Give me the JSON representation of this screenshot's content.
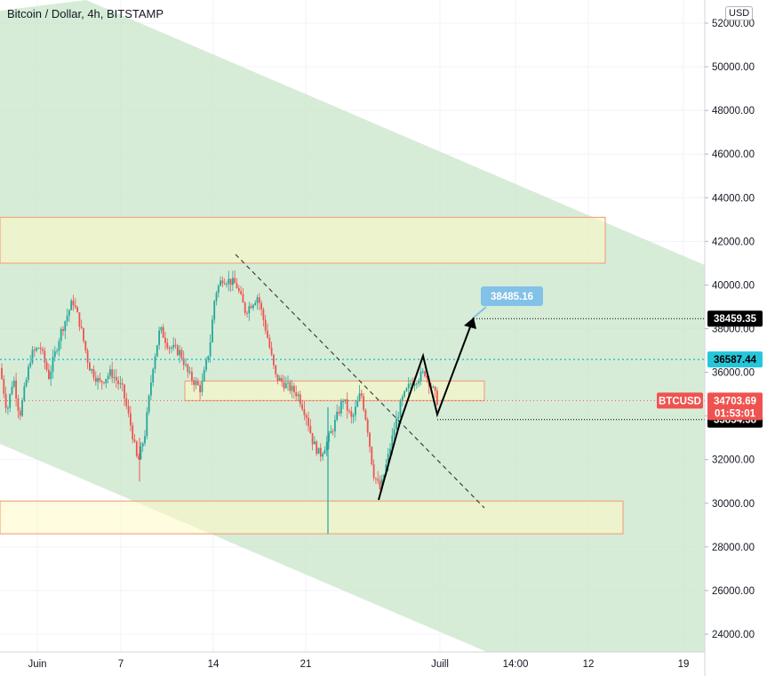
{
  "header": {
    "title": "Bitcoin / Dollar, 4h, BITSTAMP",
    "currency": "USD"
  },
  "chart_data": {
    "type": "candlestick",
    "symbol": "BTCUSD",
    "ylim": [
      23000,
      52500
    ],
    "y_ticks": [
      24000,
      26000,
      28000,
      30000,
      32000,
      34000,
      36000,
      38000,
      40000,
      42000,
      44000,
      46000,
      48000,
      50000,
      52000
    ],
    "y_tick_labels": [
      "24000.00",
      "26000.00",
      "28000.00",
      "30000.00",
      "32000.00",
      "34000.00",
      "36000.00",
      "38000.00",
      "40000.00",
      "42000.00",
      "44000.00",
      "46000.00",
      "48000.00",
      "50000.00",
      "52000.00"
    ],
    "x_tick_labels": [
      "Juin",
      "7",
      "14",
      "21",
      "Juill",
      "14:00",
      "12",
      "19"
    ],
    "price_tags": {
      "last": {
        "label": "BTCUSD",
        "value": "34703.69",
        "countdown": "01:53:01",
        "color": "#ef5350"
      },
      "level_teal": {
        "value": "36587.44",
        "color": "#26c6da"
      },
      "target": {
        "value": "38459.35",
        "color": "#000000"
      },
      "low_line": {
        "value": "33834.38",
        "color": "#000000"
      },
      "projection_callout": {
        "value": "38485.16",
        "color": "#82c1e8"
      }
    },
    "zones": [
      {
        "name": "resistance",
        "low": 41000,
        "high": 43100
      },
      {
        "name": "middle",
        "low": 34700,
        "high": 35600
      },
      {
        "name": "support",
        "low": 28600,
        "high": 30100
      }
    ],
    "colors": {
      "up": "#26a69a",
      "down": "#ef5350",
      "channel": "#c8e6c9",
      "zone_fill": "#fff9c4",
      "zone_border": "#f4a582"
    }
  }
}
